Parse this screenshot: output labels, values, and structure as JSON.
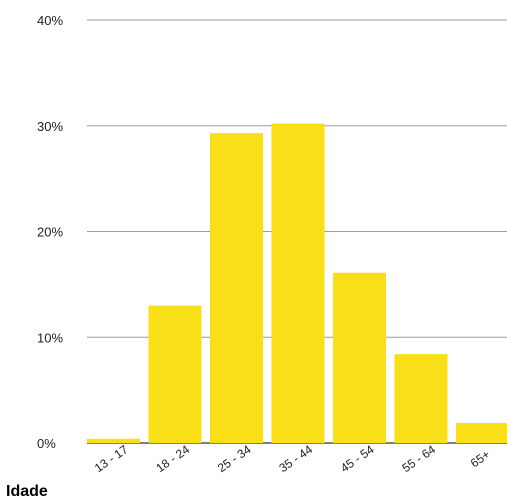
{
  "chart_data": {
    "type": "bar",
    "categories": [
      "13 - 17",
      "18 - 24",
      "25 - 34",
      "35 - 44",
      "45 - 54",
      "55 - 64",
      "65+"
    ],
    "values": [
      0.4,
      13,
      29.3,
      30.2,
      16.1,
      8.4,
      1.9
    ],
    "xlabel": "Idade",
    "ylabel": "",
    "ylim": [
      0,
      40
    ],
    "yticks": [
      "0%",
      "10%",
      "20%",
      "30%",
      "40%"
    ],
    "grid": true,
    "colors": {
      "bar": "#F9DF17",
      "grid": "#9E9E9E",
      "axis": "#555555"
    }
  }
}
